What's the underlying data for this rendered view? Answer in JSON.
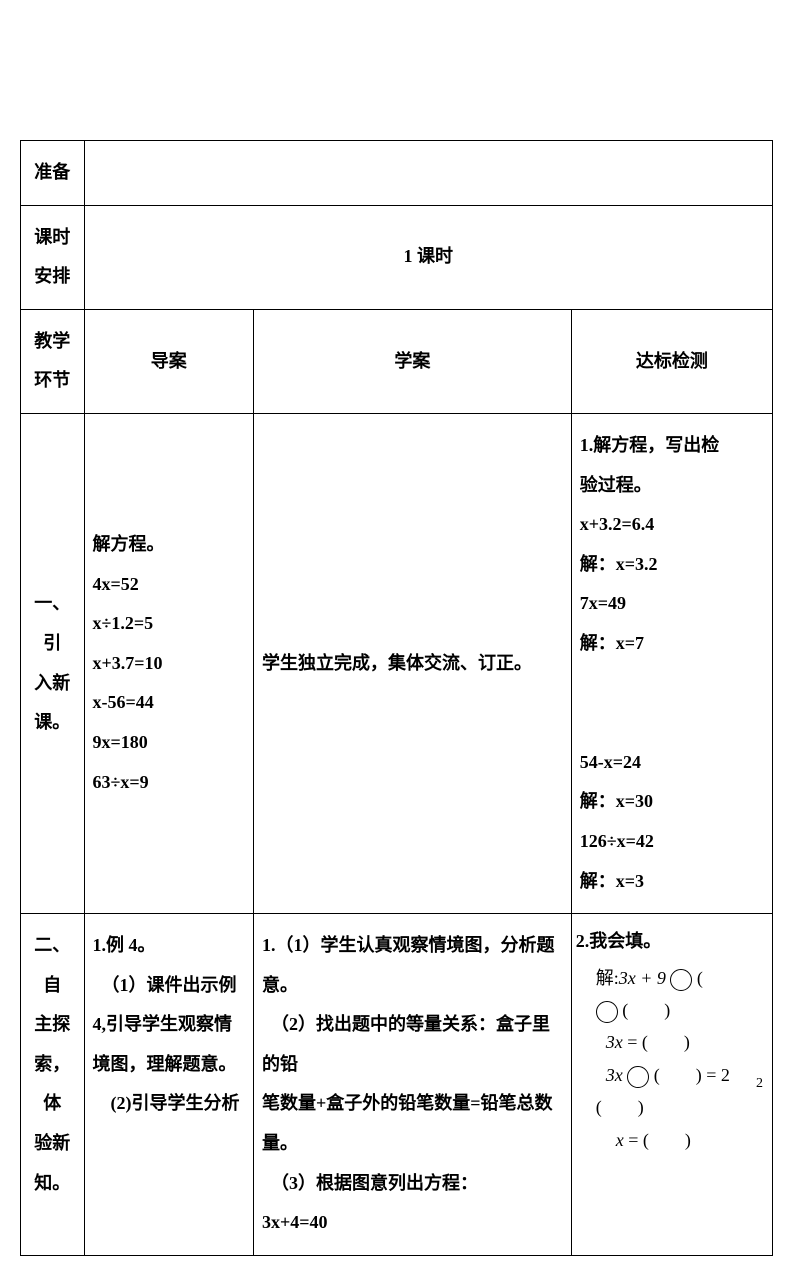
{
  "rows": {
    "prep": {
      "label": "准备",
      "content": ""
    },
    "schedule": {
      "label": "课时<br>安排",
      "content": "1 课时"
    },
    "header": {
      "label": "教学<br>环节",
      "col2": "导案",
      "col3": "学案",
      "col4": "达标检测"
    },
    "section1": {
      "label": "一、引<br>入新<br>课。",
      "daoan": "解方程。<br>4x=52<br>x÷1.2=5<br>x+3.7=10<br>x-56=44<br>9x=180<br>63÷x=9",
      "xuean": "学生独立完成，集体交流、订正。",
      "dabiao_lines": [
        "1.解方程，写出检",
        "验过程。",
        "x+3.2=6.4",
        "解：x=3.2",
        "7x=49",
        "解：x=7",
        "",
        "54-x=24",
        "解：x=30",
        "126÷x=42",
        "解：x=3"
      ]
    },
    "section2": {
      "label": "二、自<br>主探<br>索，体<br>验新<br>知。",
      "daoan": "1.例 4。<br>　（1）课件出示例<br>4,引导学生观察情<br>境图，理解题意。<br>　(2)引导学生分析",
      "xuean": "1.（1）学生认真观察情境图，分析题意。<br>　（2）找出题中的等量关系：盒子里的铅<br>笔数量+盒子外的铅笔数量=铅笔总数量。<br>　（3）根据图意列出方程：<br>3x+4=40",
      "dabiao": {
        "title": "2.我会填。",
        "line1_prefix": "解:",
        "line1_math": "3x + 9",
        "line1_suffix": "(",
        "line2": "(　　)",
        "line3": "3x = (　　)",
        "line4_prefix": "3x",
        "line4_mid": "(　　)",
        "line4_suffix": "= 2",
        "line5": "(　　)",
        "line6": "x = (　　)"
      }
    }
  },
  "page_number": "2"
}
